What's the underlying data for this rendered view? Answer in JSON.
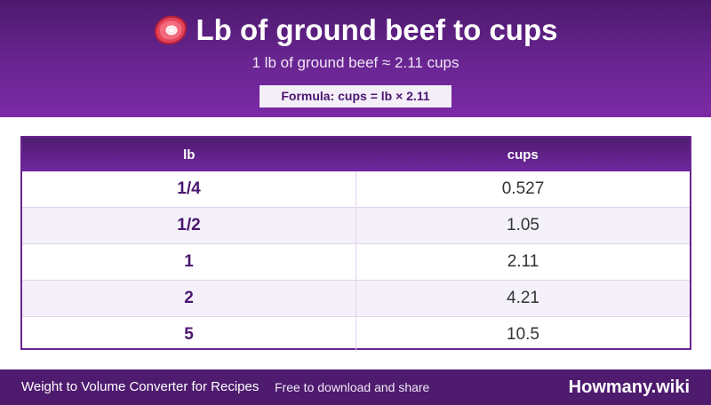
{
  "header": {
    "icon": "meat-icon",
    "title": "Lb of ground beef to cups",
    "subtitle": "1 lb of ground beef ≈ 2.11 cups",
    "formula": "Formula: cups = lb × 2.11"
  },
  "table": {
    "columns": [
      "lb",
      "cups"
    ],
    "rows": [
      [
        "1/4",
        "0.527"
      ],
      [
        "1/2",
        "1.05"
      ],
      [
        "1",
        "2.11"
      ],
      [
        "2",
        "4.21"
      ],
      [
        "5",
        "10.5"
      ]
    ]
  },
  "footer": {
    "left": "Weight to Volume Converter for Recipes",
    "middle": "Free to download and share",
    "brand": "Howmany.wiki"
  },
  "colors": {
    "primary": "#6a2592",
    "dark": "#4e1b6f",
    "accent_text": "#4a1670",
    "alt_row": "#f5f1fa"
  }
}
